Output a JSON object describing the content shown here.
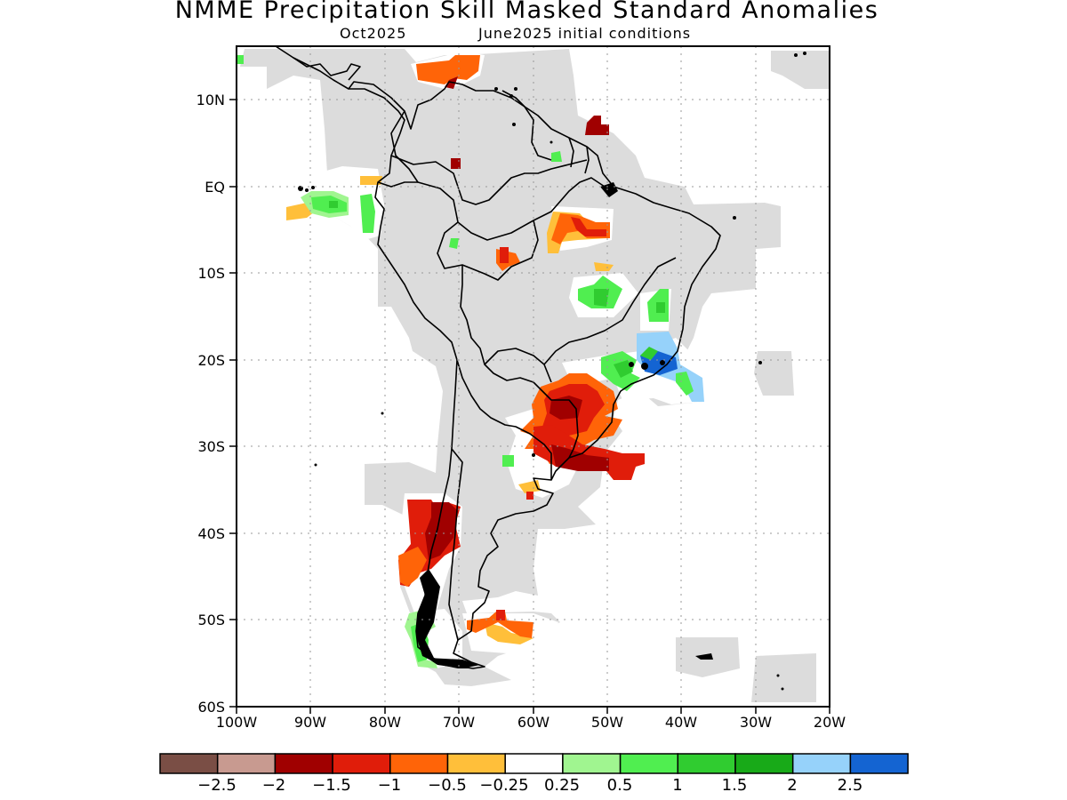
{
  "title": "NMME Precipitation Skill Masked Standard Anomalies",
  "subtitle_left": "Oct2025",
  "subtitle_right": "June2025 initial conditions",
  "map": {
    "lon_range": [
      -100,
      -20
    ],
    "lat_range": [
      -60,
      16
    ],
    "y_ticks": [
      "10N",
      "EQ",
      "10S",
      "20S",
      "30S",
      "40S",
      "50S",
      "60S"
    ],
    "x_ticks": [
      "100W",
      "90W",
      "80W",
      "70W",
      "60W",
      "50W",
      "40W",
      "30W",
      "20W"
    ],
    "grid": true,
    "mask_color": "#dcdcdc"
  },
  "colorbar": {
    "colors": [
      "#7a4e45",
      "#c89a90",
      "#a00000",
      "#e01d0a",
      "#ff6408",
      "#ffbf3a",
      "#ffffff",
      "#a0f590",
      "#50ee50",
      "#30cc30",
      "#18aa18",
      "#96d2fa",
      "#1464d2"
    ],
    "labels": [
      "−2.5",
      "−2",
      "−1.5",
      "−1",
      "−0.5",
      "−0.25",
      "0.25",
      "0.5",
      "1",
      "1.5",
      "2",
      "2.5"
    ]
  }
}
